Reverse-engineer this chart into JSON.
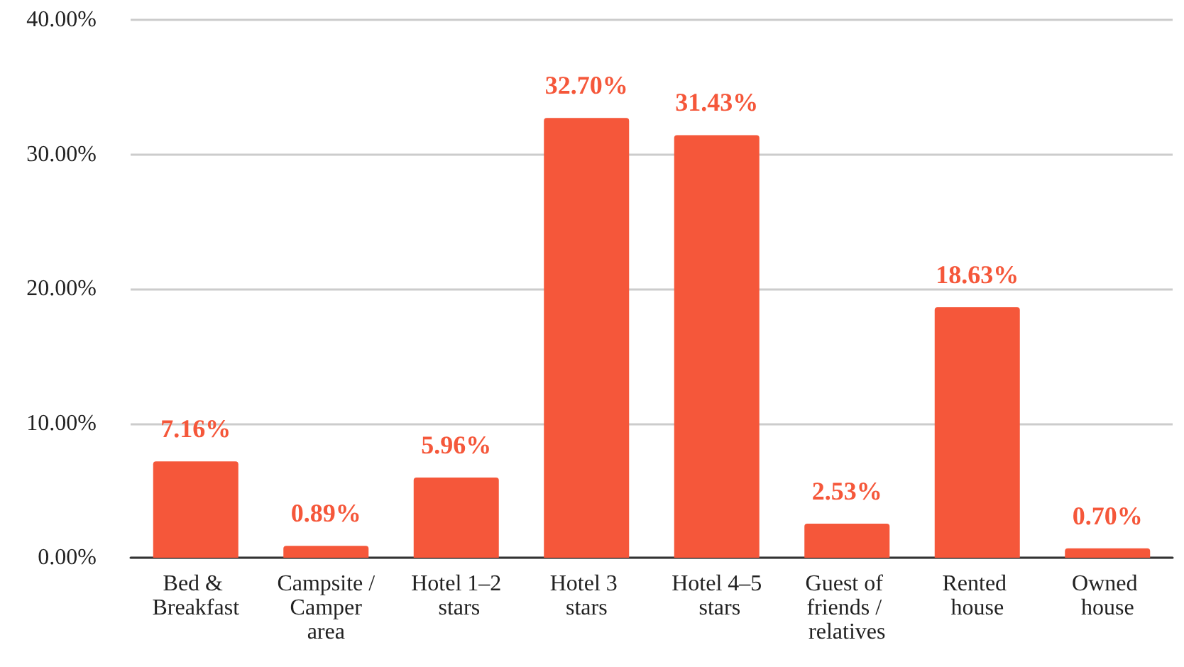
{
  "chart_data": {
    "type": "bar",
    "categories": [
      "Bed & Breakfast",
      "Campsite / Camper area",
      "Hotel 1–2 stars",
      "Hotel 3 stars",
      "Hotel 4–5 stars",
      "Guest of friends / relatives",
      "Rented house",
      "Owned house"
    ],
    "values": [
      7.16,
      0.89,
      5.96,
      32.7,
      31.43,
      2.53,
      18.63,
      0.7
    ],
    "value_labels": [
      "7.16%",
      "0.89%",
      "5.96%",
      "32.70%",
      "31.43%",
      "2.53%",
      "18.63%",
      "0.70%"
    ],
    "color": "#f5573a",
    "ylim": [
      0,
      40
    ],
    "yticks": [
      {
        "value": 0,
        "label": "0.00%"
      },
      {
        "value": 10,
        "label": "10.00%"
      },
      {
        "value": 20,
        "label": "20.00%"
      },
      {
        "value": 30,
        "label": "30.00%"
      },
      {
        "value": 40,
        "label": "40.00%"
      }
    ],
    "grid": "y"
  }
}
